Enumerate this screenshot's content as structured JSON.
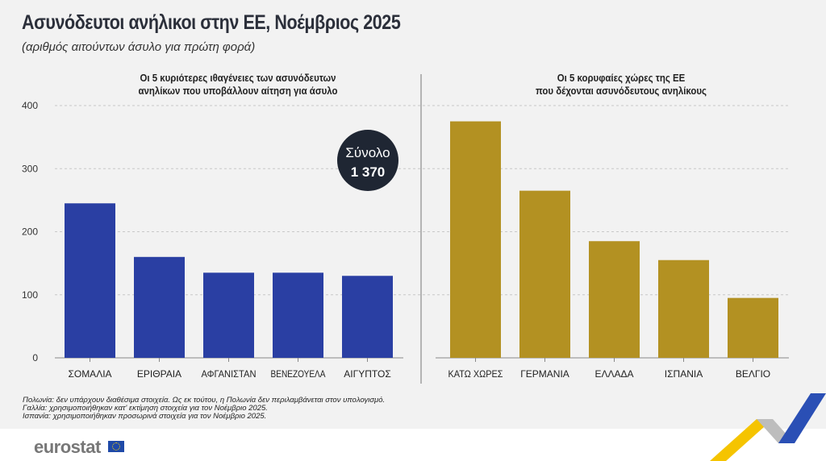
{
  "title": "Ασυνόδευτοι ανήλικοι στην ΕΕ, Νοέμβριος 2025",
  "subtitle": "(αριθμός αιτούντων άσυλο για πρώτη φορά)",
  "total": {
    "label": "Σύνολο",
    "value": "1 370"
  },
  "footnotes": [
    "Πολωνία: δεν υπάρχουν διαθέσιμα στοιχεία. Ως εκ τούτου, η Πολωνία δεν περιλαμβάνεται στον υπολογισμό.",
    "Γαλλία: χρησιμοποιήθηκαν κατ' εκτίμηση στοιχεία για τον Νοέμβριο 2025.",
    "Ισπανία: χρησιμοποιήθηκαν προσωρινά στοιχεία για τον Νοέμβριο 2025."
  ],
  "logo": "eurostat",
  "chart_data": [
    {
      "type": "bar",
      "title": "Οι 5 κυριότερες ιθαγένειες των ασυνόδευτων ανηλίκων που υποβάλλουν αίτηση για άσυλο",
      "title_lines": [
        "Οι 5 κυριότερες ιθαγένειες των ασυνόδευτων",
        "ανηλίκων που υποβάλλουν αίτηση για άσυλο"
      ],
      "categories": [
        "ΣΟΜΑΛΙΑ",
        "ΕΡΙΘΡΑΙΑ",
        "ΑΦΓΑΝΙΣΤΑΝ",
        "ΒΕΝΕΖΟΥΕΛΑ",
        "ΑΙΓΥΠΤΟΣ"
      ],
      "values": [
        245,
        160,
        135,
        135,
        130
      ],
      "color": "#2a3fa3",
      "ylim": [
        0,
        400
      ],
      "yticks": [
        0,
        100,
        200,
        300,
        400
      ],
      "grid": true
    },
    {
      "type": "bar",
      "title": "Οι 5 κορυφαίες χώρες της ΕΕ που δέχονται ασυνόδευτους ανηλίκους",
      "title_lines": [
        "Οι 5 κορυφαίες χώρες της ΕΕ",
        "που δέχονται ασυνόδευτους ανηλίκους"
      ],
      "categories": [
        "ΚΑΤΩ ΧΩΡΕΣ",
        "ΓΕΡΜΑΝΙΑ",
        "ΕΛΛΑΔΑ",
        "ΙΣΠΑΝΙΑ",
        "ΒΕΛΓΙΟ"
      ],
      "values": [
        375,
        265,
        185,
        155,
        95
      ],
      "color": "#b39122",
      "ylim": [
        0,
        400
      ],
      "grid": true
    }
  ]
}
